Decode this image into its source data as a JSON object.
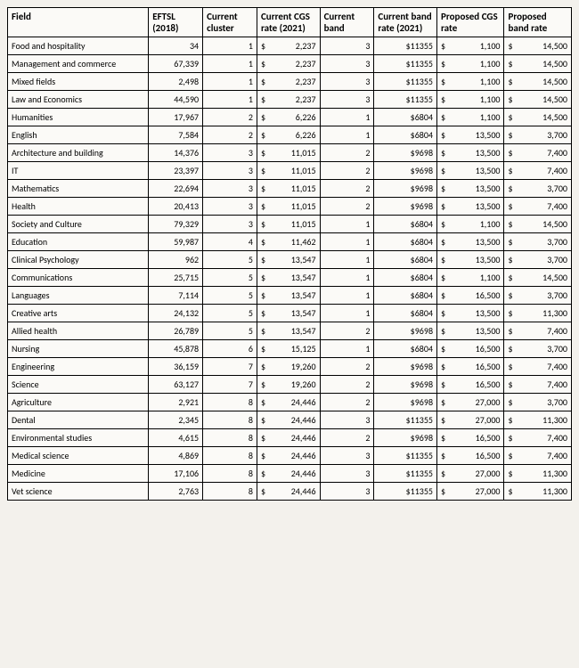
{
  "table": {
    "columns": [
      {
        "key": "field",
        "label": "Field",
        "type": "text"
      },
      {
        "key": "eftsl",
        "label": "EFTSL (2018)",
        "type": "num"
      },
      {
        "key": "cluster",
        "label": "Current cluster",
        "type": "num"
      },
      {
        "key": "cgs",
        "label": "Current CGS rate (2021)",
        "type": "money"
      },
      {
        "key": "band",
        "label": "Current band",
        "type": "num"
      },
      {
        "key": "brate",
        "label": "Current band rate (2021)",
        "type": "num_money"
      },
      {
        "key": "pcgs",
        "label": "Proposed CGS rate",
        "type": "money"
      },
      {
        "key": "pband",
        "label": "Proposed band rate",
        "type": "money"
      }
    ],
    "rows": [
      {
        "field": "Food and hospitality",
        "eftsl": "34",
        "cluster": "1",
        "cgs": "2,237",
        "band": "3",
        "brate": "$11355",
        "pcgs": "1,100",
        "pband": "14,500"
      },
      {
        "field": "Management and commerce",
        "eftsl": "67,339",
        "cluster": "1",
        "cgs": "2,237",
        "band": "3",
        "brate": "$11355",
        "pcgs": "1,100",
        "pband": "14,500"
      },
      {
        "field": "Mixed fields",
        "eftsl": "2,498",
        "cluster": "1",
        "cgs": "2,237",
        "band": "3",
        "brate": "$11355",
        "pcgs": "1,100",
        "pband": "14,500"
      },
      {
        "field": "Law and Economics",
        "eftsl": "44,590",
        "cluster": "1",
        "cgs": "2,237",
        "band": "3",
        "brate": "$11355",
        "pcgs": "1,100",
        "pband": "14,500"
      },
      {
        "field": "Humanities",
        "eftsl": "17,967",
        "cluster": "2",
        "cgs": "6,226",
        "band": "1",
        "brate": "$6804",
        "pcgs": "1,100",
        "pband": "14,500"
      },
      {
        "field": "English",
        "eftsl": "7,584",
        "cluster": "2",
        "cgs": "6,226",
        "band": "1",
        "brate": "$6804",
        "pcgs": "13,500",
        "pband": "3,700"
      },
      {
        "field": "Architecture and building",
        "eftsl": "14,376",
        "cluster": "3",
        "cgs": "11,015",
        "band": "2",
        "brate": "$9698",
        "pcgs": "13,500",
        "pband": "7,400"
      },
      {
        "field": "IT",
        "eftsl": "23,397",
        "cluster": "3",
        "cgs": "11,015",
        "band": "2",
        "brate": "$9698",
        "pcgs": "13,500",
        "pband": "7,400"
      },
      {
        "field": "Mathematics",
        "eftsl": "22,694",
        "cluster": "3",
        "cgs": "11,015",
        "band": "2",
        "brate": "$9698",
        "pcgs": "13,500",
        "pband": "3,700"
      },
      {
        "field": "Health",
        "eftsl": "20,413",
        "cluster": "3",
        "cgs": "11,015",
        "band": "2",
        "brate": "$9698",
        "pcgs": "13,500",
        "pband": "7,400"
      },
      {
        "field": "Society and Culture",
        "eftsl": "79,329",
        "cluster": "3",
        "cgs": "11,015",
        "band": "1",
        "brate": "$6804",
        "pcgs": "1,100",
        "pband": "14,500"
      },
      {
        "field": "Education",
        "eftsl": "59,987",
        "cluster": "4",
        "cgs": "11,462",
        "band": "1",
        "brate": "$6804",
        "pcgs": "13,500",
        "pband": "3,700"
      },
      {
        "field": "Clinical Psychology",
        "eftsl": "962",
        "cluster": "5",
        "cgs": "13,547",
        "band": "1",
        "brate": "$6804",
        "pcgs": "13,500",
        "pband": "3,700"
      },
      {
        "field": "Communications",
        "eftsl": "25,715",
        "cluster": "5",
        "cgs": "13,547",
        "band": "1",
        "brate": "$6804",
        "pcgs": "1,100",
        "pband": "14,500"
      },
      {
        "field": "Languages",
        "eftsl": "7,114",
        "cluster": "5",
        "cgs": "13,547",
        "band": "1",
        "brate": "$6804",
        "pcgs": "16,500",
        "pband": "3,700"
      },
      {
        "field": "Creative arts",
        "eftsl": "24,132",
        "cluster": "5",
        "cgs": "13,547",
        "band": "1",
        "brate": "$6804",
        "pcgs": "13,500",
        "pband": "11,300"
      },
      {
        "field": "Allied health",
        "eftsl": "26,789",
        "cluster": "5",
        "cgs": "13,547",
        "band": "2",
        "brate": "$9698",
        "pcgs": "13,500",
        "pband": "7,400"
      },
      {
        "field": "Nursing",
        "eftsl": "45,878",
        "cluster": "6",
        "cgs": "15,125",
        "band": "1",
        "brate": "$6804",
        "pcgs": "16,500",
        "pband": "3,700"
      },
      {
        "field": "Engineering",
        "eftsl": "36,159",
        "cluster": "7",
        "cgs": "19,260",
        "band": "2",
        "brate": "$9698",
        "pcgs": "16,500",
        "pband": "7,400"
      },
      {
        "field": "Science",
        "eftsl": "63,127",
        "cluster": "7",
        "cgs": "19,260",
        "band": "2",
        "brate": "$9698",
        "pcgs": "16,500",
        "pband": "7,400"
      },
      {
        "field": "Agriculture",
        "eftsl": "2,921",
        "cluster": "8",
        "cgs": "24,446",
        "band": "2",
        "brate": "$9698",
        "pcgs": "27,000",
        "pband": "3,700"
      },
      {
        "field": "Dental",
        "eftsl": "2,345",
        "cluster": "8",
        "cgs": "24,446",
        "band": "3",
        "brate": "$11355",
        "pcgs": "27,000",
        "pband": "11,300"
      },
      {
        "field": "Environmental studies",
        "eftsl": "4,615",
        "cluster": "8",
        "cgs": "24,446",
        "band": "2",
        "brate": "$9698",
        "pcgs": "16,500",
        "pband": "7,400"
      },
      {
        "field": "Medical science",
        "eftsl": "4,869",
        "cluster": "8",
        "cgs": "24,446",
        "band": "3",
        "brate": "$11355",
        "pcgs": "16,500",
        "pband": "7,400"
      },
      {
        "field": "Medicine",
        "eftsl": "17,106",
        "cluster": "8",
        "cgs": "24,446",
        "band": "3",
        "brate": "$11355",
        "pcgs": "27,000",
        "pband": "11,300"
      },
      {
        "field": "Vet science",
        "eftsl": "2,763",
        "cluster": "8",
        "cgs": "24,446",
        "band": "3",
        "brate": "$11355",
        "pcgs": "27,000",
        "pband": "11,300"
      }
    ],
    "style": {
      "border_color": "#000000",
      "background_color": "#fbfaf7",
      "header_fontsize": 11,
      "body_fontsize": 10,
      "font_family": "Calibri"
    }
  }
}
